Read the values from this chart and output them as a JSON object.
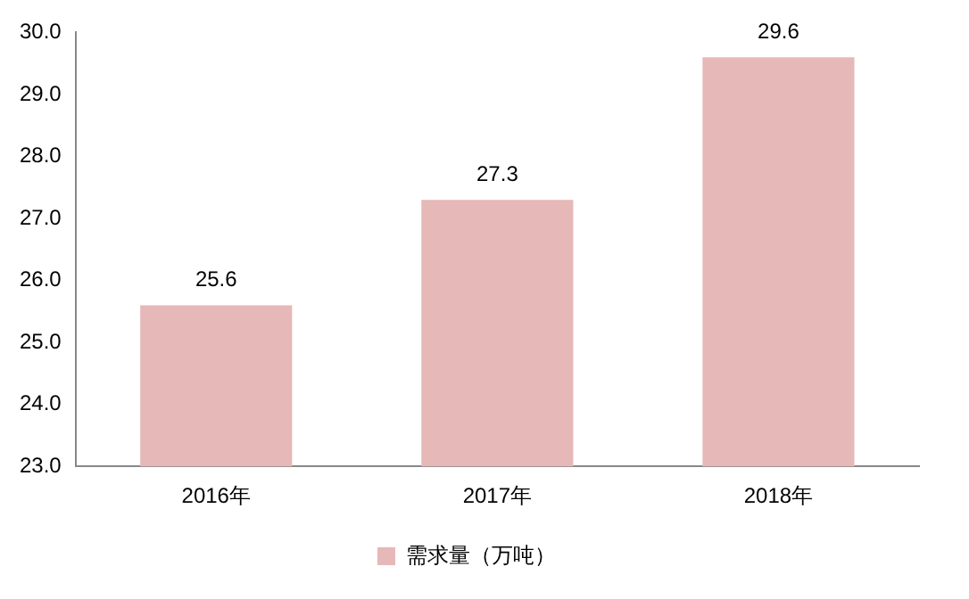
{
  "chart_data": {
    "type": "bar",
    "categories": [
      "2016年",
      "2017年",
      "2018年"
    ],
    "series": [
      {
        "name": "需求量（万吨）",
        "color": "#e6b8b7",
        "values": [
          25.6,
          27.3,
          29.6
        ]
      }
    ],
    "ylim": [
      23,
      30
    ],
    "yticks": [
      {
        "value": 23,
        "label": "23.0"
      },
      {
        "value": 24,
        "label": "24.0"
      },
      {
        "value": 25,
        "label": "25.0"
      },
      {
        "value": 26,
        "label": "26.0"
      },
      {
        "value": 27,
        "label": "27.0"
      },
      {
        "value": 28,
        "label": "28.0"
      },
      {
        "value": 29,
        "label": "29.0"
      },
      {
        "value": 30,
        "label": "30.0"
      }
    ],
    "data_labels": true,
    "legend": "bottom",
    "grid": false
  }
}
